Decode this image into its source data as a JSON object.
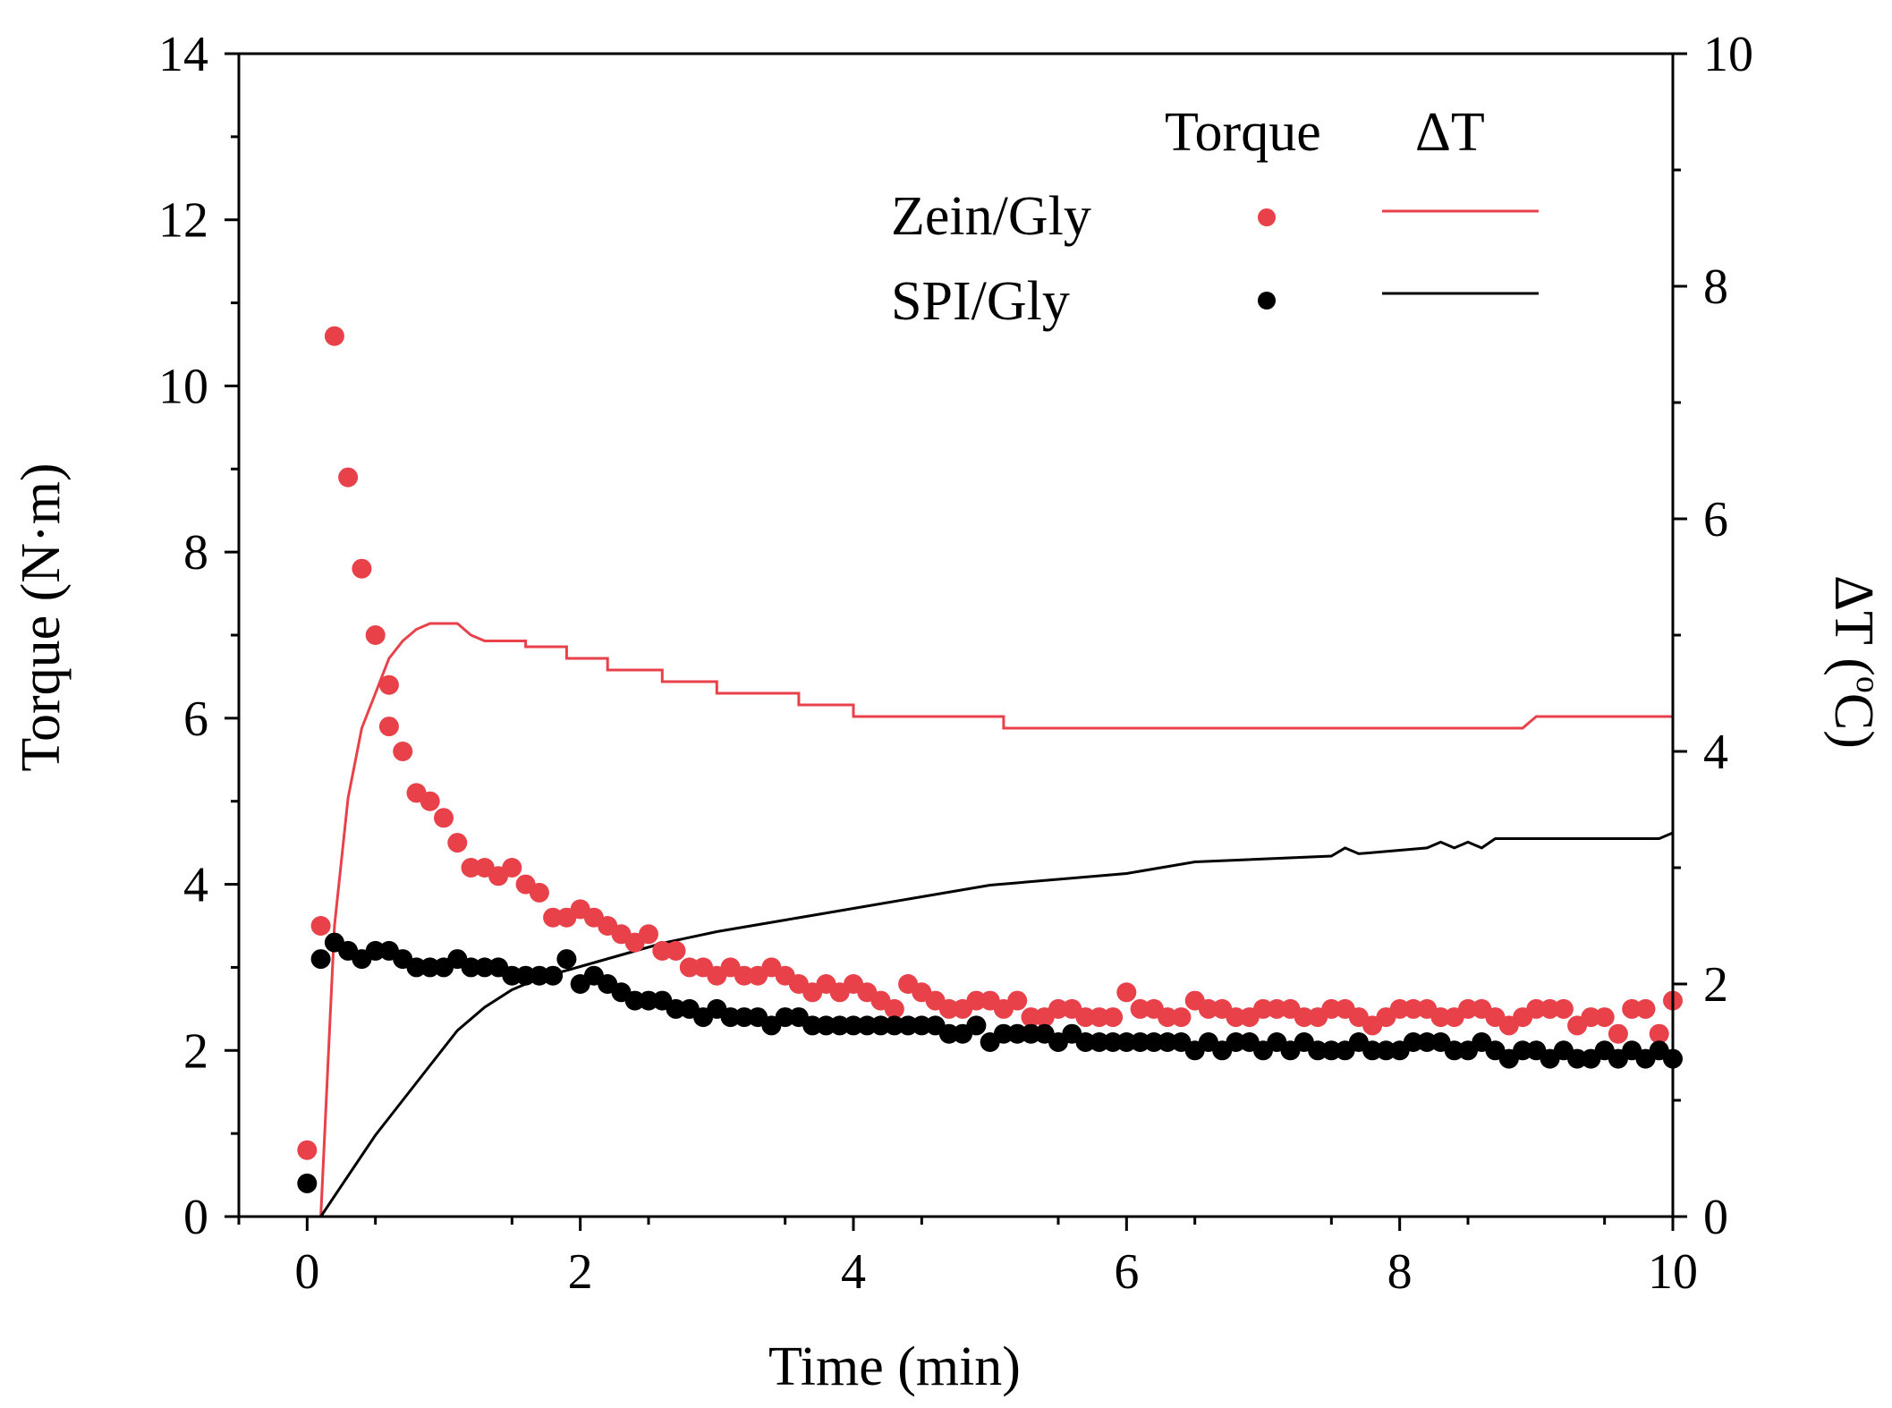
{
  "chart_data": {
    "type": "scatter+line",
    "title": "",
    "xlabel": "Time (min)",
    "ylabel_left": "Torque (N·m)",
    "ylabel_right_base": "ΔT (",
    "ylabel_right_sup": "o",
    "ylabel_right_unit": "C)",
    "xlim": [
      -0.5,
      10
    ],
    "ylim_left": [
      0,
      14
    ],
    "ylim_right": [
      0,
      10
    ],
    "x_ticks": [
      "0",
      "2",
      "4",
      "6",
      "8",
      "10"
    ],
    "y_left_ticks": [
      "0",
      "2",
      "4",
      "6",
      "8",
      "10",
      "12",
      "14"
    ],
    "y_right_ticks": [
      "0",
      "2",
      "4",
      "6",
      "8",
      "10"
    ],
    "legend": {
      "header_torque": "Torque",
      "header_dt": "ΔT",
      "entries": [
        "Zein/Gly",
        "SPI/Gly"
      ],
      "placement": "top-right"
    },
    "colors": {
      "zein": "#e8414a",
      "spi": "#000000"
    },
    "series": [
      {
        "name": "Zein/Gly",
        "kind": "torque",
        "axis": "left",
        "color": "#e8414a",
        "points": [
          [
            0,
            0.8
          ],
          [
            0.1,
            3.5
          ],
          [
            0.2,
            10.6
          ],
          [
            0.3,
            8.9
          ],
          [
            0.4,
            7.8
          ],
          [
            0.5,
            7.0
          ],
          [
            0.6,
            6.4
          ],
          [
            0.6,
            5.9
          ],
          [
            0.7,
            5.6
          ],
          [
            0.8,
            5.1
          ],
          [
            0.9,
            5.0
          ],
          [
            1.0,
            4.8
          ],
          [
            1.1,
            4.5
          ],
          [
            1.2,
            4.2
          ],
          [
            1.3,
            4.2
          ],
          [
            1.4,
            4.1
          ],
          [
            1.5,
            4.2
          ],
          [
            1.6,
            4.0
          ],
          [
            1.7,
            3.9
          ],
          [
            1.8,
            3.6
          ],
          [
            1.9,
            3.6
          ],
          [
            2.0,
            3.7
          ],
          [
            2.1,
            3.6
          ],
          [
            2.2,
            3.5
          ],
          [
            2.3,
            3.4
          ],
          [
            2.4,
            3.3
          ],
          [
            2.5,
            3.4
          ],
          [
            2.6,
            3.2
          ],
          [
            2.7,
            3.2
          ],
          [
            2.8,
            3.0
          ],
          [
            2.9,
            3.0
          ],
          [
            3.0,
            2.9
          ],
          [
            3.1,
            3.0
          ],
          [
            3.2,
            2.9
          ],
          [
            3.3,
            2.9
          ],
          [
            3.4,
            3.0
          ],
          [
            3.5,
            2.9
          ],
          [
            3.6,
            2.8
          ],
          [
            3.7,
            2.7
          ],
          [
            3.8,
            2.8
          ],
          [
            3.9,
            2.7
          ],
          [
            4.0,
            2.8
          ],
          [
            4.1,
            2.7
          ],
          [
            4.2,
            2.6
          ],
          [
            4.3,
            2.5
          ],
          [
            4.4,
            2.8
          ],
          [
            4.5,
            2.7
          ],
          [
            4.6,
            2.6
          ],
          [
            4.7,
            2.5
          ],
          [
            4.8,
            2.5
          ],
          [
            4.9,
            2.6
          ],
          [
            5.0,
            2.6
          ],
          [
            5.1,
            2.5
          ],
          [
            5.2,
            2.6
          ],
          [
            5.3,
            2.4
          ],
          [
            5.4,
            2.4
          ],
          [
            5.5,
            2.5
          ],
          [
            5.6,
            2.5
          ],
          [
            5.7,
            2.4
          ],
          [
            5.8,
            2.4
          ],
          [
            5.9,
            2.4
          ],
          [
            6.0,
            2.7
          ],
          [
            6.1,
            2.5
          ],
          [
            6.2,
            2.5
          ],
          [
            6.3,
            2.4
          ],
          [
            6.4,
            2.4
          ],
          [
            6.5,
            2.6
          ],
          [
            6.6,
            2.5
          ],
          [
            6.7,
            2.5
          ],
          [
            6.8,
            2.4
          ],
          [
            6.9,
            2.4
          ],
          [
            7.0,
            2.5
          ],
          [
            7.1,
            2.5
          ],
          [
            7.2,
            2.5
          ],
          [
            7.3,
            2.4
          ],
          [
            7.4,
            2.4
          ],
          [
            7.5,
            2.5
          ],
          [
            7.6,
            2.5
          ],
          [
            7.7,
            2.4
          ],
          [
            7.8,
            2.3
          ],
          [
            7.9,
            2.4
          ],
          [
            8.0,
            2.5
          ],
          [
            8.1,
            2.5
          ],
          [
            8.2,
            2.5
          ],
          [
            8.3,
            2.4
          ],
          [
            8.4,
            2.4
          ],
          [
            8.5,
            2.5
          ],
          [
            8.6,
            2.5
          ],
          [
            8.7,
            2.4
          ],
          [
            8.8,
            2.3
          ],
          [
            8.9,
            2.4
          ],
          [
            9.0,
            2.5
          ],
          [
            9.1,
            2.5
          ],
          [
            9.2,
            2.5
          ],
          [
            9.3,
            2.3
          ],
          [
            9.4,
            2.4
          ],
          [
            9.5,
            2.4
          ],
          [
            9.6,
            2.2
          ],
          [
            9.7,
            2.5
          ],
          [
            9.8,
            2.5
          ],
          [
            9.9,
            2.2
          ],
          [
            10.0,
            2.6
          ]
        ]
      },
      {
        "name": "SPI/Gly",
        "kind": "torque",
        "axis": "left",
        "color": "#000000",
        "points": [
          [
            0,
            0.4
          ],
          [
            0.1,
            3.1
          ],
          [
            0.2,
            3.3
          ],
          [
            0.3,
            3.2
          ],
          [
            0.4,
            3.1
          ],
          [
            0.5,
            3.2
          ],
          [
            0.6,
            3.2
          ],
          [
            0.7,
            3.1
          ],
          [
            0.8,
            3.0
          ],
          [
            0.9,
            3.0
          ],
          [
            1.0,
            3.0
          ],
          [
            1.1,
            3.1
          ],
          [
            1.2,
            3.0
          ],
          [
            1.3,
            3.0
          ],
          [
            1.4,
            3.0
          ],
          [
            1.5,
            2.9
          ],
          [
            1.6,
            2.9
          ],
          [
            1.7,
            2.9
          ],
          [
            1.8,
            2.9
          ],
          [
            1.9,
            3.1
          ],
          [
            2.0,
            2.8
          ],
          [
            2.1,
            2.9
          ],
          [
            2.2,
            2.8
          ],
          [
            2.3,
            2.7
          ],
          [
            2.4,
            2.6
          ],
          [
            2.5,
            2.6
          ],
          [
            2.6,
            2.6
          ],
          [
            2.7,
            2.5
          ],
          [
            2.8,
            2.5
          ],
          [
            2.9,
            2.4
          ],
          [
            3.0,
            2.5
          ],
          [
            3.1,
            2.4
          ],
          [
            3.2,
            2.4
          ],
          [
            3.3,
            2.4
          ],
          [
            3.4,
            2.3
          ],
          [
            3.5,
            2.4
          ],
          [
            3.6,
            2.4
          ],
          [
            3.7,
            2.3
          ],
          [
            3.8,
            2.3
          ],
          [
            3.9,
            2.3
          ],
          [
            4.0,
            2.3
          ],
          [
            4.1,
            2.3
          ],
          [
            4.2,
            2.3
          ],
          [
            4.3,
            2.3
          ],
          [
            4.4,
            2.3
          ],
          [
            4.5,
            2.3
          ],
          [
            4.6,
            2.3
          ],
          [
            4.7,
            2.2
          ],
          [
            4.8,
            2.2
          ],
          [
            4.9,
            2.3
          ],
          [
            5.0,
            2.1
          ],
          [
            5.1,
            2.2
          ],
          [
            5.2,
            2.2
          ],
          [
            5.3,
            2.2
          ],
          [
            5.4,
            2.2
          ],
          [
            5.5,
            2.1
          ],
          [
            5.6,
            2.2
          ],
          [
            5.7,
            2.1
          ],
          [
            5.8,
            2.1
          ],
          [
            5.9,
            2.1
          ],
          [
            6.0,
            2.1
          ],
          [
            6.1,
            2.1
          ],
          [
            6.2,
            2.1
          ],
          [
            6.3,
            2.1
          ],
          [
            6.4,
            2.1
          ],
          [
            6.5,
            2.0
          ],
          [
            6.6,
            2.1
          ],
          [
            6.7,
            2.0
          ],
          [
            6.8,
            2.1
          ],
          [
            6.9,
            2.1
          ],
          [
            7.0,
            2.0
          ],
          [
            7.1,
            2.1
          ],
          [
            7.2,
            2.0
          ],
          [
            7.3,
            2.1
          ],
          [
            7.4,
            2.0
          ],
          [
            7.5,
            2.0
          ],
          [
            7.6,
            2.0
          ],
          [
            7.7,
            2.1
          ],
          [
            7.8,
            2.0
          ],
          [
            7.9,
            2.0
          ],
          [
            8.0,
            2.0
          ],
          [
            8.1,
            2.1
          ],
          [
            8.2,
            2.1
          ],
          [
            8.3,
            2.1
          ],
          [
            8.4,
            2.0
          ],
          [
            8.5,
            2.0
          ],
          [
            8.6,
            2.1
          ],
          [
            8.7,
            2.0
          ],
          [
            8.8,
            1.9
          ],
          [
            8.9,
            2.0
          ],
          [
            9.0,
            2.0
          ],
          [
            9.1,
            1.9
          ],
          [
            9.2,
            2.0
          ],
          [
            9.3,
            1.9
          ],
          [
            9.4,
            1.9
          ],
          [
            9.5,
            2.0
          ],
          [
            9.6,
            1.9
          ],
          [
            9.7,
            2.0
          ],
          [
            9.8,
            1.9
          ],
          [
            9.9,
            2.0
          ],
          [
            10.0,
            1.9
          ]
        ]
      },
      {
        "name": "Zein/Gly",
        "kind": "deltaT",
        "axis": "right",
        "color": "#e8414a",
        "points": [
          [
            0.1,
            0
          ],
          [
            0.2,
            2.5
          ],
          [
            0.3,
            3.6
          ],
          [
            0.4,
            4.2
          ],
          [
            0.5,
            4.5
          ],
          [
            0.6,
            4.8
          ],
          [
            0.7,
            4.95
          ],
          [
            0.8,
            5.05
          ],
          [
            0.9,
            5.1
          ],
          [
            1.1,
            5.1
          ],
          [
            1.2,
            5.0
          ],
          [
            1.3,
            4.95
          ],
          [
            1.6,
            4.95
          ],
          [
            1.6,
            4.9
          ],
          [
            1.9,
            4.9
          ],
          [
            1.9,
            4.8
          ],
          [
            2.2,
            4.8
          ],
          [
            2.2,
            4.7
          ],
          [
            2.6,
            4.7
          ],
          [
            2.6,
            4.6
          ],
          [
            3.0,
            4.6
          ],
          [
            3.0,
            4.5
          ],
          [
            3.6,
            4.5
          ],
          [
            3.6,
            4.4
          ],
          [
            4.0,
            4.4
          ],
          [
            4.0,
            4.3
          ],
          [
            5.1,
            4.3
          ],
          [
            5.1,
            4.2
          ],
          [
            8.9,
            4.2
          ],
          [
            9.0,
            4.3
          ],
          [
            10.0,
            4.3
          ]
        ]
      },
      {
        "name": "SPI/Gly",
        "kind": "deltaT",
        "axis": "right",
        "color": "#000000",
        "points": [
          [
            0.1,
            0
          ],
          [
            0.3,
            0.35
          ],
          [
            0.5,
            0.7
          ],
          [
            0.7,
            1.0
          ],
          [
            0.9,
            1.3
          ],
          [
            1.1,
            1.6
          ],
          [
            1.3,
            1.8
          ],
          [
            1.5,
            1.95
          ],
          [
            1.7,
            2.05
          ],
          [
            2.0,
            2.15
          ],
          [
            2.3,
            2.25
          ],
          [
            2.6,
            2.35
          ],
          [
            3.0,
            2.45
          ],
          [
            3.5,
            2.55
          ],
          [
            4.0,
            2.65
          ],
          [
            4.5,
            2.75
          ],
          [
            5.0,
            2.85
          ],
          [
            6.0,
            2.95
          ],
          [
            6.5,
            3.05
          ],
          [
            7.5,
            3.1
          ],
          [
            7.6,
            3.17
          ],
          [
            7.7,
            3.12
          ],
          [
            8.2,
            3.17
          ],
          [
            8.3,
            3.22
          ],
          [
            8.4,
            3.17
          ],
          [
            8.5,
            3.22
          ],
          [
            8.6,
            3.17
          ],
          [
            8.7,
            3.25
          ],
          [
            9.9,
            3.25
          ],
          [
            10.0,
            3.3
          ]
        ]
      }
    ]
  }
}
